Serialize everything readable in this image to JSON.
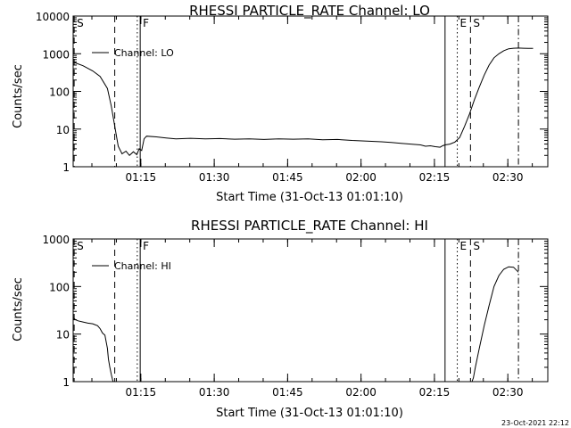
{
  "chart_data": [
    {
      "type": "line",
      "title": "RHESSI PARTICLE_RATE Channel: LO",
      "xlabel": "Start Time (31-Oct-13 01:01:10)",
      "ylabel": "Counts/sec",
      "yscale": "log",
      "ylim": [
        1,
        10000
      ],
      "xlim_minutes": [
        0,
        97
      ],
      "x_tick_labels": [
        "01:15",
        "01:30",
        "01:45",
        "02:00",
        "02:15",
        "02:30"
      ],
      "x_tick_minutes": [
        13.83,
        28.83,
        43.83,
        58.83,
        73.83,
        88.83
      ],
      "y_tick_labels": [
        "1",
        "10",
        "100",
        "1000",
        "10000"
      ],
      "y_tick_values": [
        1,
        10,
        100,
        1000,
        10000
      ],
      "legend": "Channel: LO",
      "legend_position": "top-left",
      "series": [
        {
          "name": "Channel: LO",
          "x_minutes": [
            0,
            2,
            4,
            5.5,
            7,
            7.8,
            8.5,
            9.2,
            10,
            10.8,
            11.5,
            12.3,
            13,
            13.5,
            14,
            14.5,
            15,
            17,
            19,
            21,
            24,
            27,
            30,
            33,
            36,
            39,
            42,
            45,
            48,
            51,
            54,
            57,
            60,
            63,
            65,
            67,
            69,
            71,
            72,
            73,
            74,
            75,
            75.5,
            76,
            77,
            78,
            79,
            80,
            81,
            82,
            83,
            84,
            85,
            86,
            87,
            88,
            89,
            90,
            91,
            92,
            93,
            94
          ],
          "values": [
            600,
            480,
            350,
            250,
            120,
            40,
            12,
            3.5,
            2.2,
            2.6,
            2.0,
            2.5,
            2.1,
            3.0,
            2.7,
            5.5,
            6.5,
            6.2,
            5.8,
            5.5,
            5.7,
            5.5,
            5.6,
            5.4,
            5.5,
            5.3,
            5.5,
            5.4,
            5.5,
            5.2,
            5.3,
            5.0,
            4.8,
            4.6,
            4.4,
            4.2,
            4.0,
            3.8,
            3.5,
            3.6,
            3.4,
            3.3,
            3.6,
            3.8,
            4.0,
            4.5,
            6.0,
            12,
            25,
            60,
            130,
            270,
            500,
            780,
            1000,
            1200,
            1350,
            1400,
            1410,
            1400,
            1390,
            1380
          ]
        }
      ],
      "events": [
        {
          "label": "S",
          "minute": 0.2,
          "style": "dashed"
        },
        {
          "label": "",
          "minute": 8.5,
          "style": "dashed"
        },
        {
          "label": "",
          "minute": 13.1,
          "style": "dotted"
        },
        {
          "label": "F",
          "minute": 13.7,
          "style": "solid"
        },
        {
          "label": "",
          "minute": 76.0,
          "style": "solid"
        },
        {
          "label": "E",
          "minute": 78.5,
          "style": "dotted"
        },
        {
          "label": "S",
          "minute": 81.2,
          "style": "dashed"
        },
        {
          "label": "",
          "minute": 91.0,
          "style": "dashdot"
        }
      ]
    },
    {
      "type": "line",
      "title": "RHESSI PARTICLE_RATE Channel: HI",
      "xlabel": "Start Time (31-Oct-13 01:01:10)",
      "ylabel": "Counts/sec",
      "yscale": "log",
      "ylim": [
        1,
        1000
      ],
      "xlim_minutes": [
        0,
        97
      ],
      "x_tick_labels": [
        "01:15",
        "01:30",
        "01:45",
        "02:00",
        "02:15",
        "02:30"
      ],
      "x_tick_minutes": [
        13.83,
        28.83,
        43.83,
        58.83,
        73.83,
        88.83
      ],
      "y_tick_labels": [
        "1",
        "10",
        "100",
        "1000"
      ],
      "y_tick_values": [
        1,
        10,
        100,
        1000
      ],
      "legend": "Channel: HI",
      "legend_position": "top-left",
      "series": [
        {
          "name": "Channel: HI",
          "x_minutes": [
            0,
            0.5,
            1,
            2,
            3,
            4,
            5,
            5.5,
            6,
            6.5,
            7,
            7.2,
            7.5,
            7.8,
            8.1,
            8.2
          ],
          "values": [
            22,
            20,
            19,
            18,
            17,
            16.5,
            15,
            13,
            10.5,
            9.5,
            5,
            3,
            2,
            1.4,
            1.05,
            1
          ],
          "x2_minutes": [
            81.5,
            81.8,
            82.2,
            83,
            84,
            85,
            86,
            87,
            88,
            89,
            90,
            91
          ],
          "values2": [
            1,
            1.2,
            2,
            5,
            15,
            40,
            100,
            170,
            230,
            260,
            255,
            200
          ]
        }
      ],
      "events": [
        {
          "label": "S",
          "minute": 0.2,
          "style": "dashed"
        },
        {
          "label": "",
          "minute": 8.5,
          "style": "dashed"
        },
        {
          "label": "",
          "minute": 13.1,
          "style": "dotted"
        },
        {
          "label": "F",
          "minute": 13.7,
          "style": "solid"
        },
        {
          "label": "",
          "minute": 76.0,
          "style": "solid"
        },
        {
          "label": "E",
          "minute": 78.5,
          "style": "dotted"
        },
        {
          "label": "S",
          "minute": 81.2,
          "style": "dashed"
        },
        {
          "label": "",
          "minute": 91.0,
          "style": "dashdot"
        }
      ]
    }
  ],
  "timestamp": "23-Oct-2021 22:12"
}
